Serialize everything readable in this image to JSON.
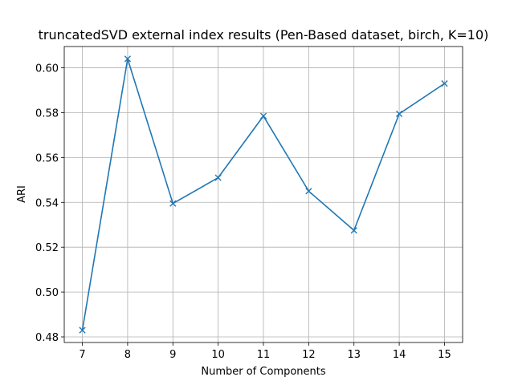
{
  "chart_data": {
    "type": "line",
    "title": "truncatedSVD external index results (Pen-Based dataset, birch, K=10)",
    "xlabel": "Number of Components",
    "ylabel": "ARI",
    "x": [
      7,
      8,
      9,
      10,
      11,
      12,
      13,
      14,
      15
    ],
    "series": [
      {
        "values": [
          0.483,
          0.604,
          0.5395,
          0.551,
          0.5785,
          0.545,
          0.5275,
          0.5795,
          0.593
        ],
        "color": "#1f77b4",
        "marker": "x"
      }
    ],
    "xlim": [
      6.6,
      15.4
    ],
    "ylim": [
      0.4775,
      0.6095
    ],
    "x_ticks": [
      7,
      8,
      9,
      10,
      11,
      12,
      13,
      14,
      15
    ],
    "y_ticks": [
      0.48,
      0.5,
      0.52,
      0.54,
      0.56,
      0.58,
      0.6
    ],
    "y_tick_labels": [
      "0.48",
      "0.50",
      "0.52",
      "0.54",
      "0.56",
      "0.58",
      "0.60"
    ],
    "grid": true,
    "legend": "none"
  }
}
